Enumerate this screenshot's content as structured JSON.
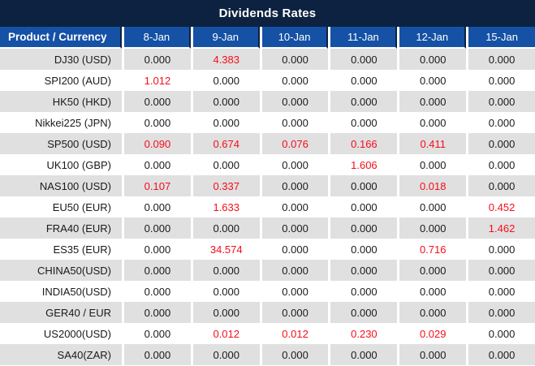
{
  "title": "Dividends Rates",
  "colors": {
    "title_bar_navy": "#0d2240",
    "header_blue": "#1551a5",
    "stripe_gray": "#e0e0e0",
    "value_black": "#1a1a1a",
    "value_red": "#f70d1a",
    "separator_white": "#ffffff"
  },
  "table": {
    "corner_header": "Product / Currency",
    "date_headers": [
      "8-Jan",
      "9-Jan",
      "10-Jan",
      "11-Jan",
      "12-Jan",
      "15-Jan"
    ],
    "rows": [
      {
        "product": "DJ30 (USD)",
        "values": [
          "0.000",
          "4.383",
          "0.000",
          "0.000",
          "0.000",
          "0.000"
        ]
      },
      {
        "product": "SPI200 (AUD)",
        "values": [
          "1.012",
          "0.000",
          "0.000",
          "0.000",
          "0.000",
          "0.000"
        ]
      },
      {
        "product": "HK50 (HKD)",
        "values": [
          "0.000",
          "0.000",
          "0.000",
          "0.000",
          "0.000",
          "0.000"
        ]
      },
      {
        "product": "Nikkei225 (JPN)",
        "values": [
          "0.000",
          "0.000",
          "0.000",
          "0.000",
          "0.000",
          "0.000"
        ]
      },
      {
        "product": "SP500 (USD)",
        "values": [
          "0.090",
          "0.674",
          "0.076",
          "0.166",
          "0.411",
          "0.000"
        ]
      },
      {
        "product": "UK100 (GBP)",
        "values": [
          "0.000",
          "0.000",
          "0.000",
          "1.606",
          "0.000",
          "0.000"
        ]
      },
      {
        "product": "NAS100 (USD)",
        "values": [
          "0.107",
          "0.337",
          "0.000",
          "0.000",
          "0.018",
          "0.000"
        ]
      },
      {
        "product": "EU50 (EUR)",
        "values": [
          "0.000",
          "1.633",
          "0.000",
          "0.000",
          "0.000",
          "0.452"
        ]
      },
      {
        "product": "FRA40 (EUR)",
        "values": [
          "0.000",
          "0.000",
          "0.000",
          "0.000",
          "0.000",
          "1.462"
        ]
      },
      {
        "product": "ES35 (EUR)",
        "values": [
          "0.000",
          "34.574",
          "0.000",
          "0.000",
          "0.716",
          "0.000"
        ]
      },
      {
        "product": "CHINA50(USD)",
        "values": [
          "0.000",
          "0.000",
          "0.000",
          "0.000",
          "0.000",
          "0.000"
        ]
      },
      {
        "product": "INDIA50(USD)",
        "values": [
          "0.000",
          "0.000",
          "0.000",
          "0.000",
          "0.000",
          "0.000"
        ]
      },
      {
        "product": "GER40 / EUR",
        "values": [
          "0.000",
          "0.000",
          "0.000",
          "0.000",
          "0.000",
          "0.000"
        ]
      },
      {
        "product": "US2000(USD)",
        "values": [
          "0.000",
          "0.012",
          "0.012",
          "0.230",
          "0.029",
          "0.000"
        ]
      },
      {
        "product": "SA40(ZAR)",
        "values": [
          "0.000",
          "0.000",
          "0.000",
          "0.000",
          "0.000",
          "0.000"
        ]
      }
    ]
  }
}
